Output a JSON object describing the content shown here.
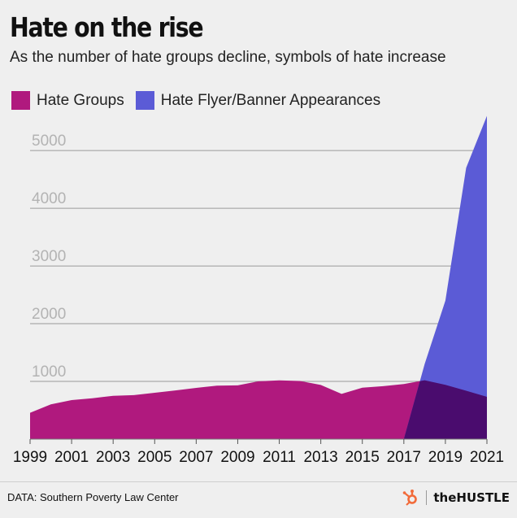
{
  "header": {
    "title": "Hate on the rise",
    "subtitle": "As the number of hate groups decline, symbols of hate increase"
  },
  "colors": {
    "hate_groups": "#b0197e",
    "hate_flyers": "#5b5bd6",
    "overlap": "#4a0c6e",
    "gridline": "#9a9a9a",
    "tick_label": "#b3b3b3"
  },
  "footer": {
    "source": "DATA: Southern Poverty Law Center",
    "brand": "theHUSTLE",
    "brand_icon": "hubspot-sprocket-icon"
  },
  "chart_data": {
    "type": "area",
    "title": "Hate on the rise",
    "subtitle": "As the number of hate groups decline, symbols of hate increase",
    "xlabel": "",
    "ylabel": "",
    "x": [
      1999,
      2000,
      2001,
      2002,
      2003,
      2004,
      2005,
      2006,
      2007,
      2008,
      2009,
      2010,
      2011,
      2012,
      2013,
      2014,
      2015,
      2016,
      2017,
      2018,
      2019,
      2020,
      2021
    ],
    "xticks": [
      1999,
      2001,
      2003,
      2005,
      2007,
      2009,
      2011,
      2013,
      2015,
      2017,
      2019,
      2021
    ],
    "yticks": [
      1000,
      2000,
      3000,
      4000,
      5000
    ],
    "ylim": [
      0,
      5650
    ],
    "grid": true,
    "legend_position": "top-left",
    "series": [
      {
        "name": "Hate Groups",
        "x": [
          1999,
          2000,
          2001,
          2002,
          2003,
          2004,
          2005,
          2006,
          2007,
          2008,
          2009,
          2010,
          2011,
          2012,
          2013,
          2014,
          2015,
          2016,
          2017,
          2018,
          2019,
          2020,
          2021
        ],
        "values": [
          457,
          602,
          676,
          708,
          751,
          762,
          803,
          844,
          888,
          926,
          932,
          1002,
          1018,
          1007,
          939,
          784,
          892,
          917,
          954,
          1020,
          940,
          838,
          733
        ]
      },
      {
        "name": "Hate Flyer/Banner Appearances",
        "x": [
          2017,
          2018,
          2019,
          2020,
          2021
        ],
        "values": [
          0,
          1300,
          2400,
          4700,
          5600
        ]
      }
    ]
  }
}
